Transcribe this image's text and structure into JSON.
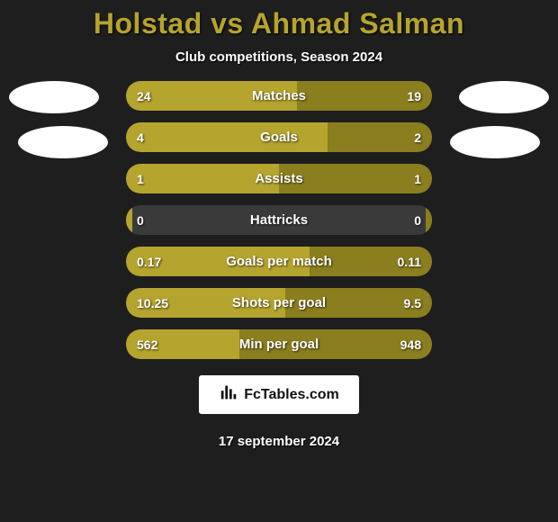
{
  "header": {
    "player1": "Holstad",
    "vs": "vs",
    "player2": "Ahmad Salman",
    "subtitle": "Club competitions, Season 2024"
  },
  "colors": {
    "player1_bar": "#b5a42e",
    "player2_bar": "#8a7e1f",
    "row_bg": "#3a3a3a",
    "title": "#b5a42e"
  },
  "stats": [
    {
      "label": "Matches",
      "p1": "24",
      "p2": "19",
      "p1_pct": 56,
      "p2_pct": 44
    },
    {
      "label": "Goals",
      "p1": "4",
      "p2": "2",
      "p1_pct": 66,
      "p2_pct": 34
    },
    {
      "label": "Assists",
      "p1": "1",
      "p2": "1",
      "p1_pct": 50,
      "p2_pct": 50
    },
    {
      "label": "Hattricks",
      "p1": "0",
      "p2": "0",
      "p1_pct": 2,
      "p2_pct": 2
    },
    {
      "label": "Goals per match",
      "p1": "0.17",
      "p2": "0.11",
      "p1_pct": 60,
      "p2_pct": 40
    },
    {
      "label": "Shots per goal",
      "p1": "10.25",
      "p2": "9.5",
      "p1_pct": 52,
      "p2_pct": 48
    },
    {
      "label": "Min per goal",
      "p1": "562",
      "p2": "948",
      "p1_pct": 37,
      "p2_pct": 63
    }
  ],
  "brand": {
    "icon_name": "chart-bars-icon",
    "text": "FcTables.com"
  },
  "date": "17 september 2024"
}
